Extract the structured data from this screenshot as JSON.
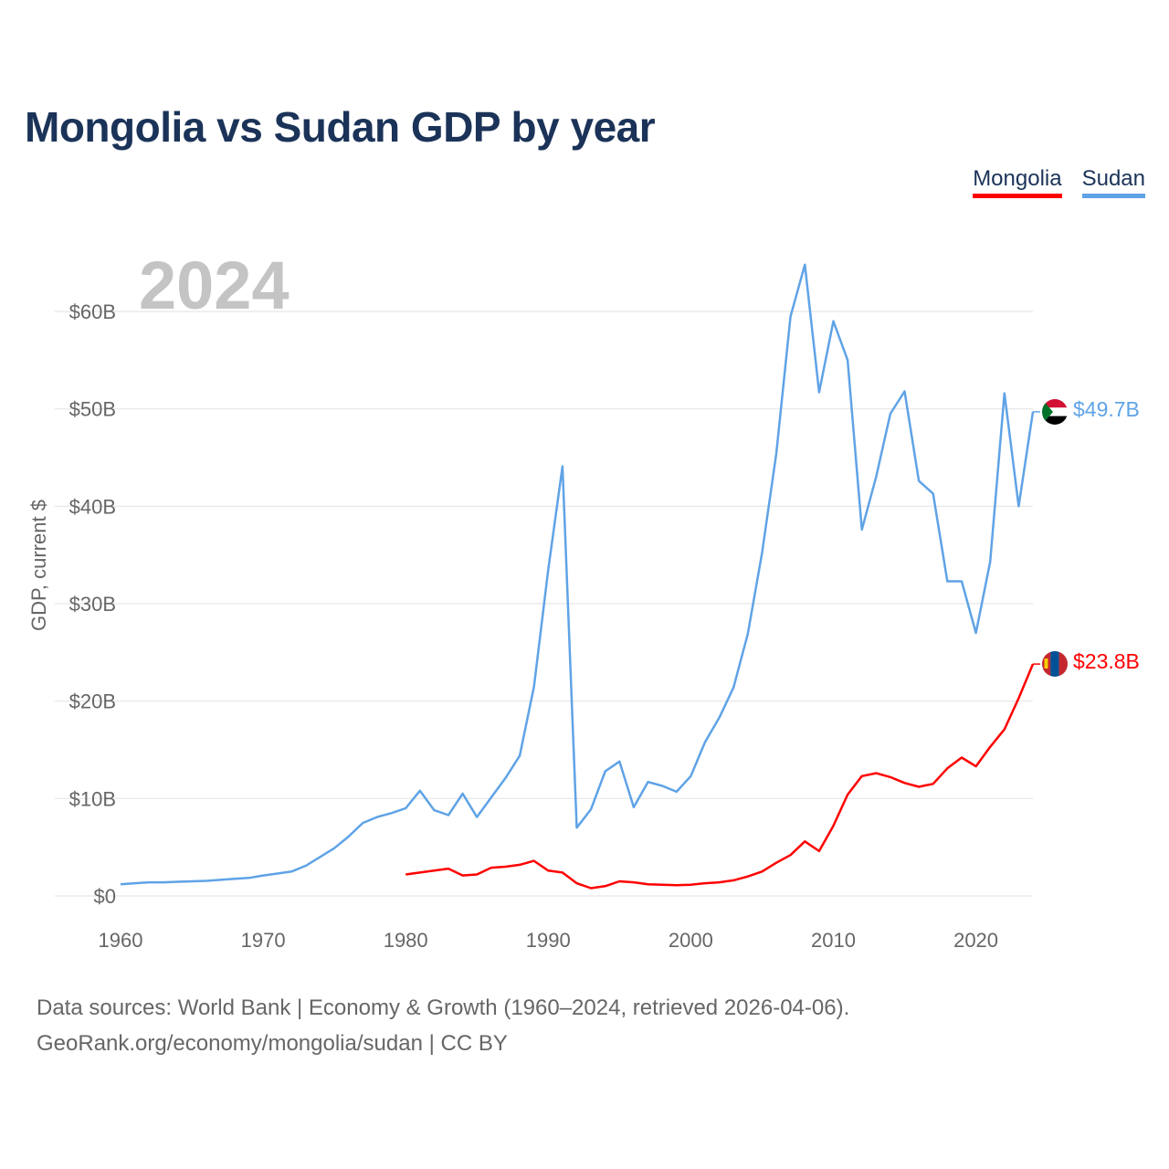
{
  "chart_data": {
    "type": "line",
    "title": "Mongolia vs Sudan GDP by year",
    "ylabel": "GDP, current $",
    "xlabel": "",
    "year_overlay": "2024",
    "xlim": [
      1960,
      2024
    ],
    "ylim": [
      0,
      65
    ],
    "x_ticks": [
      1960,
      1970,
      1980,
      1990,
      2000,
      2010,
      2020
    ],
    "y_ticks": [
      {
        "value": 0,
        "label": "$0"
      },
      {
        "value": 10,
        "label": "$10B"
      },
      {
        "value": 20,
        "label": "$20B"
      },
      {
        "value": 30,
        "label": "$30B"
      },
      {
        "value": 40,
        "label": "$40B"
      },
      {
        "value": 50,
        "label": "$50B"
      },
      {
        "value": 60,
        "label": "$60B"
      }
    ],
    "grid": true,
    "legend_placement": "top-right",
    "units": "billions USD",
    "series": [
      {
        "name": "Mongolia",
        "color": "#ff0000",
        "end_label": "$23.8B",
        "x": [
          1980,
          1981,
          1982,
          1983,
          1984,
          1985,
          1986,
          1987,
          1988,
          1989,
          1990,
          1991,
          1992,
          1993,
          1994,
          1995,
          1996,
          1997,
          1998,
          1999,
          2000,
          2001,
          2002,
          2003,
          2004,
          2005,
          2006,
          2007,
          2008,
          2009,
          2010,
          2011,
          2012,
          2013,
          2014,
          2015,
          2016,
          2017,
          2018,
          2019,
          2020,
          2021,
          2022,
          2023,
          2024
        ],
        "values": [
          2.2,
          2.4,
          2.6,
          2.8,
          2.1,
          2.2,
          2.9,
          3.0,
          3.2,
          3.6,
          2.6,
          2.4,
          1.3,
          0.8,
          1.0,
          1.5,
          1.4,
          1.2,
          1.15,
          1.1,
          1.15,
          1.3,
          1.4,
          1.6,
          2.0,
          2.5,
          3.4,
          4.2,
          5.6,
          4.6,
          7.2,
          10.4,
          12.3,
          12.6,
          12.2,
          11.6,
          11.2,
          11.5,
          13.1,
          14.2,
          13.3,
          15.3,
          17.1,
          20.3,
          23.8
        ]
      },
      {
        "name": "Sudan",
        "color": "#5fa3e6",
        "end_label": "$49.7B",
        "x": [
          1960,
          1961,
          1962,
          1963,
          1964,
          1965,
          1966,
          1967,
          1968,
          1969,
          1970,
          1971,
          1972,
          1973,
          1974,
          1975,
          1976,
          1977,
          1978,
          1979,
          1980,
          1981,
          1982,
          1983,
          1984,
          1985,
          1986,
          1987,
          1988,
          1989,
          1990,
          1991,
          1992,
          1993,
          1994,
          1995,
          1996,
          1997,
          1998,
          1999,
          2000,
          2001,
          2002,
          2003,
          2004,
          2005,
          2006,
          2007,
          2008,
          2009,
          2010,
          2011,
          2012,
          2013,
          2014,
          2015,
          2016,
          2017,
          2018,
          2019,
          2020,
          2021,
          2022,
          2023,
          2024
        ],
        "values": [
          1.2,
          1.3,
          1.4,
          1.4,
          1.45,
          1.5,
          1.55,
          1.65,
          1.75,
          1.85,
          2.1,
          2.3,
          2.5,
          3.1,
          4.0,
          4.9,
          6.1,
          7.5,
          8.1,
          8.5,
          9.0,
          10.8,
          8.8,
          8.3,
          10.5,
          8.1,
          10.1,
          12.1,
          14.4,
          21.5,
          33.5,
          44.1,
          7.0,
          8.9,
          12.8,
          13.8,
          9.1,
          11.7,
          11.3,
          10.7,
          12.3,
          15.8,
          18.3,
          21.4,
          26.9,
          35.2,
          45.4,
          59.5,
          64.8,
          51.7,
          59.0,
          55.0,
          37.6,
          43.0,
          49.5,
          51.8,
          42.6,
          41.3,
          32.3,
          32.3,
          27.0,
          34.3,
          51.6,
          40.0,
          49.7
        ]
      }
    ]
  },
  "footer": {
    "source_line": "Data sources: World Bank | Economy & Growth (1960–2024, retrieved 2026-04-06).",
    "credit_line": "GeoRank.org/economy/mongolia/sudan | CC BY"
  }
}
